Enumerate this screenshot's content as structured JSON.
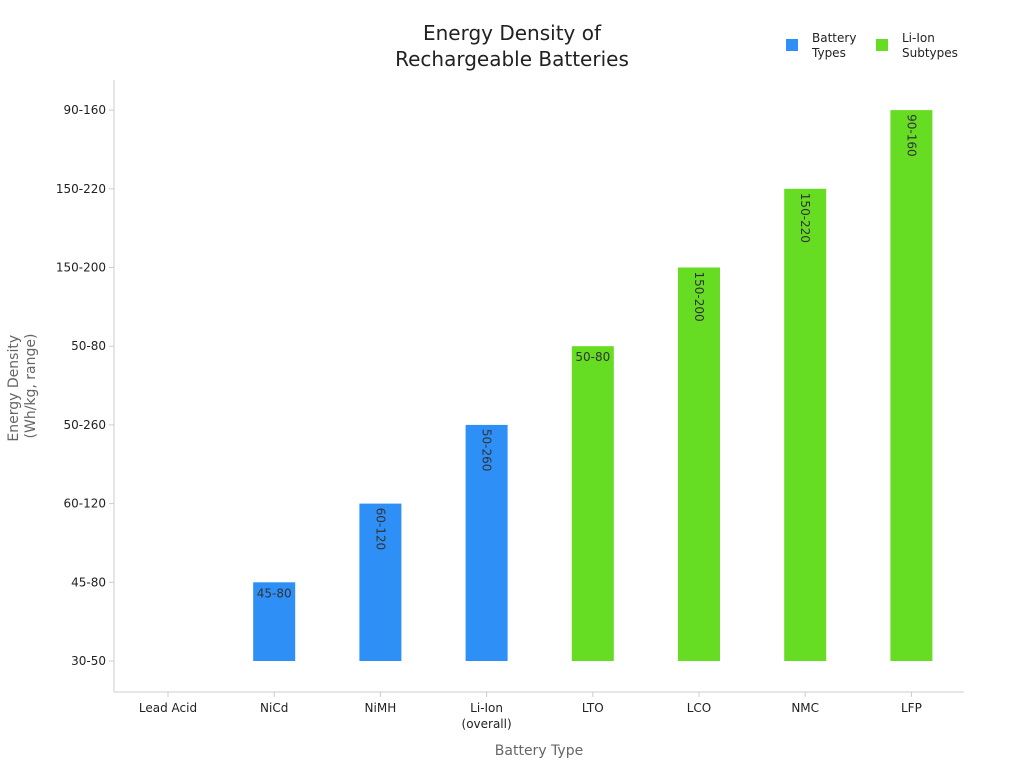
{
  "chart_data": {
    "type": "bar",
    "title": "Energy Density of Rechargeable Batteries",
    "title_lines": [
      "Energy Density of",
      "Rechargeable Batteries"
    ],
    "xlabel": "Battery Type",
    "ylabel": "Energy Density (Wh/kg, range)",
    "ylabel_lines": [
      "Energy Density",
      "(Wh/kg, range)"
    ],
    "y_axis_type": "categorical",
    "y_categories": [
      "30-50",
      "45-80",
      "60-120",
      "50-260",
      "50-80",
      "150-200",
      "150-220",
      "90-160"
    ],
    "categories": [
      "Lead Acid",
      "NiCd",
      "NiMH",
      "Li-Ion (overall)",
      "LTO",
      "LCO",
      "NMC",
      "LFP"
    ],
    "category_lines": [
      [
        "Lead Acid"
      ],
      [
        "NiCd"
      ],
      [
        "NiMH"
      ],
      [
        "Li-Ion",
        "(overall)"
      ],
      [
        "LTO"
      ],
      [
        "LCO"
      ],
      [
        "NMC"
      ],
      [
        "LFP"
      ]
    ],
    "series": [
      {
        "name": "Battery Types",
        "legend_lines": [
          "Battery",
          "Types"
        ],
        "color": "#2e8ff7",
        "values": [
          null,
          "45-80",
          "60-120",
          "50-260",
          null,
          null,
          null,
          null
        ]
      },
      {
        "name": "Li-Ion Subtypes",
        "legend_lines": [
          "Li-Ion",
          "Subtypes"
        ],
        "color": "#66dd22",
        "values": [
          null,
          null,
          null,
          null,
          "50-80",
          "150-200",
          "150-220",
          "90-160"
        ]
      }
    ],
    "data_labels": [
      "",
      "45-80",
      "60-120",
      "50-260",
      "50-80",
      "150-200",
      "150-220",
      "90-160"
    ],
    "data_label_orientation": [
      "horizontal",
      "horizontal",
      "vertical",
      "vertical",
      "horizontal",
      "vertical",
      "vertical",
      "vertical"
    ],
    "legend_position": "top-right",
    "grid": false
  }
}
